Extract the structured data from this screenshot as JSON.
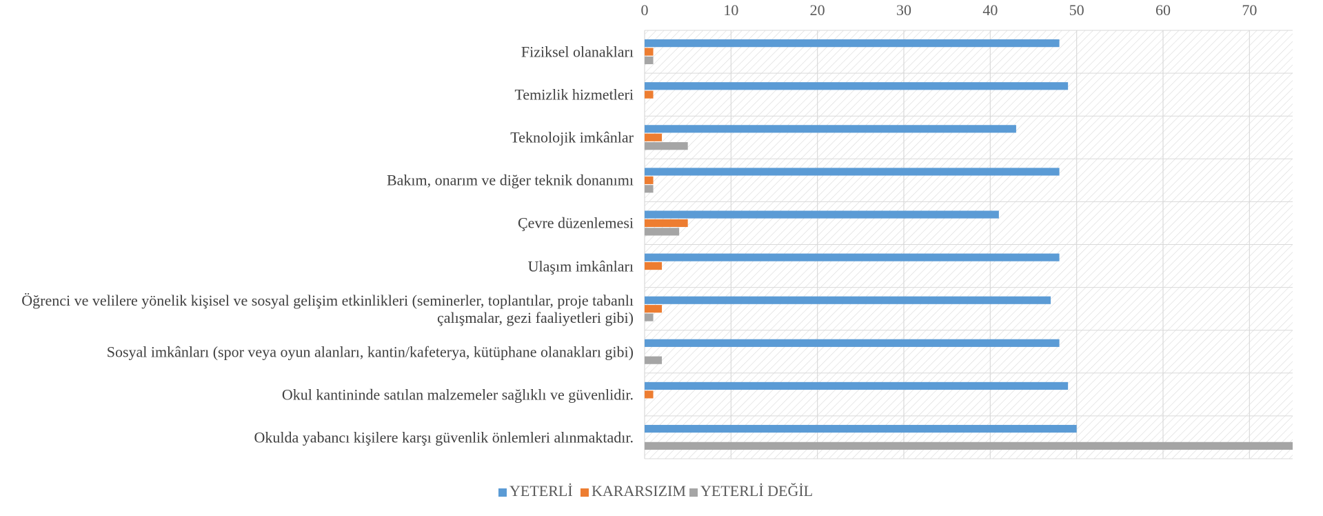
{
  "chart_data": {
    "type": "bar",
    "orientation": "horizontal",
    "categories": [
      "Fiziksel olanakları",
      "Temizlik hizmetleri",
      "Teknolojik imkânlar",
      "Bakım, onarım ve diğer teknik donanımı",
      "Çevre düzenlemesi",
      "Ulaşım imkânları",
      "Öğrenci ve velilere yönelik kişisel ve sosyal gelişim etkinlikleri (seminerler, toplantılar, proje tabanlı çalışmalar, gezi faaliyetleri gibi)",
      "Sosyal imkânları (spor veya oyun alanları, kantin/kafeterya, kütüphane olanakları gibi)",
      "Okul kantininde satılan malzemeler sağlıklı ve güvenlidir.",
      "Okulda yabancı kişilere karşı güvenlik önlemleri alınmaktadır."
    ],
    "series": [
      {
        "name": "YETERLİ",
        "color": "#5b9bd5",
        "values": [
          48,
          49,
          43,
          48,
          41,
          48,
          47,
          48,
          49,
          50
        ]
      },
      {
        "name": "KARARSIZIM",
        "color": "#ed7d31",
        "values": [
          1,
          1,
          2,
          1,
          5,
          2,
          2,
          0,
          1,
          0
        ]
      },
      {
        "name": "YETERLİ DEĞİL",
        "color": "#a5a5a5",
        "values": [
          1,
          0,
          5,
          1,
          4,
          0,
          1,
          2,
          0,
          75
        ]
      }
    ],
    "xlim": [
      0,
      75
    ],
    "xticks": [
      0,
      10,
      20,
      30,
      40,
      50,
      60,
      70
    ],
    "grid": true,
    "legend": "bottom"
  }
}
